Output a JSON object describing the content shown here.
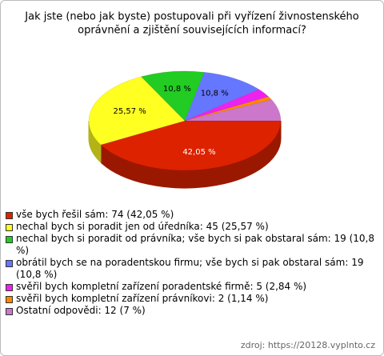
{
  "chart_data": {
    "type": "pie",
    "title": [
      "Jak jste (nebo jak byste) postupovali při vyřízení živnostenského",
      "oprávnění a zjištění souvisejících informací?"
    ],
    "categories": [
      "vše bych řešil sám: 74 (42,05 %)",
      "nechal bych si poradit jen od úředníka: 45 (25,57 %)",
      "nechal bych si poradit od právníka; vše bych si pak obstaral sám: 19 (10,8 %)",
      "obrátil bych se na poradentskou firmu; vše bych si pak obstaral sám: 19 (10,8 %)",
      "svěřil bych kompletní zařízení poradentské firmě: 5 (2,84 %)",
      "svěřil bych kompletní zařízení právníkovi: 2 (1,14 %)",
      "Ostatní odpovědi: 12 (7 %)"
    ],
    "values": [
      42.05,
      25.57,
      10.8,
      10.8,
      2.84,
      1.14,
      7
    ],
    "value_labels": [
      "42,05 %",
      "25,57 %",
      "10,8 %",
      "10,8 %",
      null,
      null,
      null
    ],
    "colors": [
      "#dd2200",
      "#ffff22",
      "#22cc22",
      "#6677ff",
      "#ee22ee",
      "#ff8800",
      "#cc77cc"
    ],
    "source": "zdroj: https://20128.vyplnto.cz"
  }
}
